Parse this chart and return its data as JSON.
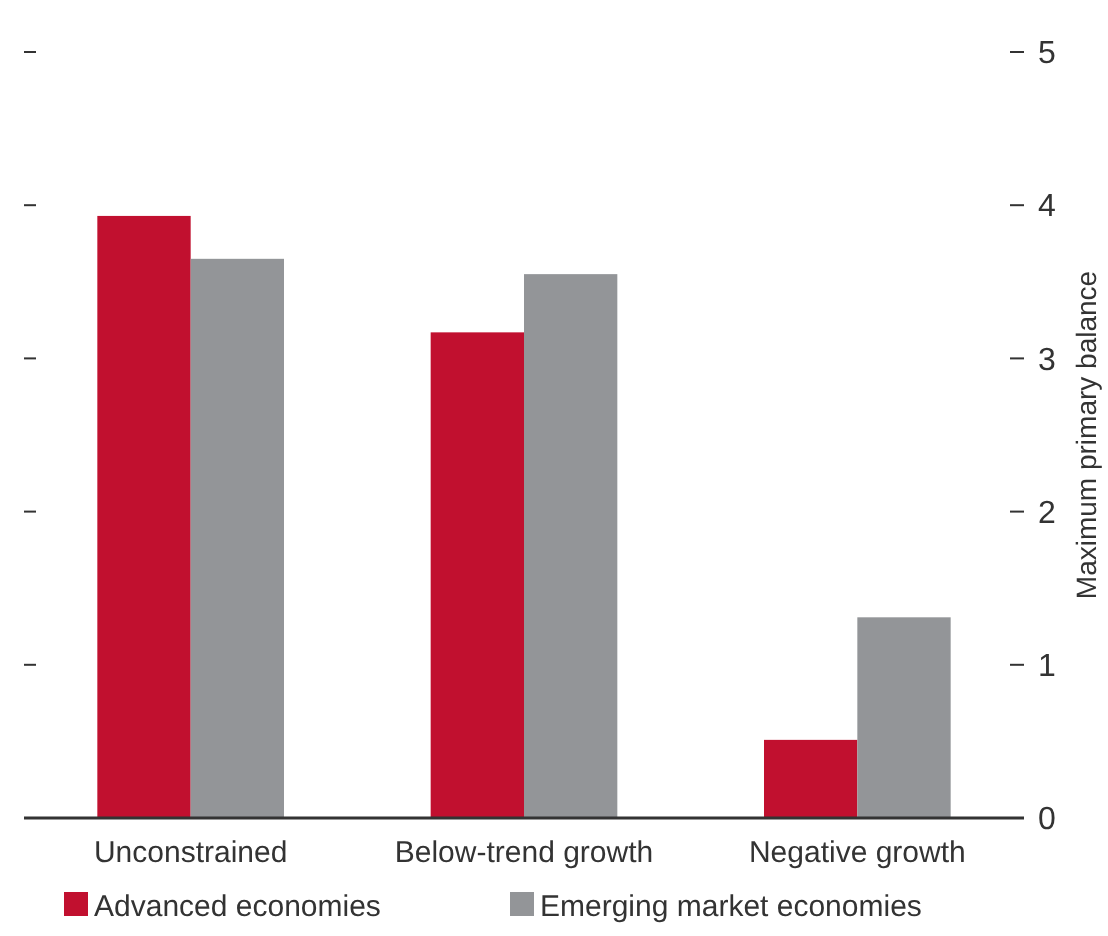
{
  "chart_data": {
    "type": "bar",
    "ylabel": "Maximum primary balance",
    "categories": [
      "Unconstrained",
      "Below-trend growth",
      "Negative growth"
    ],
    "series": [
      {
        "name": "Advanced economies",
        "color": "#c1102f",
        "values": [
          3.93,
          3.17,
          0.51
        ]
      },
      {
        "name": "Emerging market economies",
        "color": "#939598",
        "values": [
          3.65,
          3.55,
          1.31
        ]
      }
    ],
    "ylim": [
      0,
      5
    ],
    "yticks": [
      0,
      1,
      2,
      3,
      4,
      5
    ],
    "grid": false,
    "legend": "bottom"
  }
}
